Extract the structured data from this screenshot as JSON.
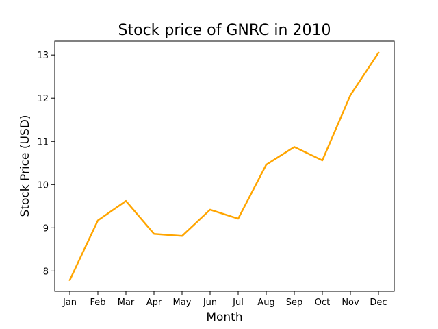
{
  "chart_data": {
    "type": "line",
    "title": "Stock price of GNRC in 2010",
    "xlabel": "Month",
    "ylabel": "Stock Price (USD)",
    "categories": [
      "Jan",
      "Feb",
      "Mar",
      "Apr",
      "May",
      "Jun",
      "Jul",
      "Aug",
      "Sep",
      "Oct",
      "Nov",
      "Dec"
    ],
    "series": [
      {
        "values": [
          7.79,
          9.17,
          9.62,
          8.86,
          8.81,
          9.42,
          9.21,
          10.46,
          10.87,
          10.56,
          12.07,
          13.05
        ],
        "color": "#ffa500"
      }
    ],
    "ylim": [
      7.53,
      13.32
    ],
    "yticks": [
      8,
      9,
      10,
      11,
      12,
      13
    ],
    "grid": false,
    "legend": "none"
  }
}
